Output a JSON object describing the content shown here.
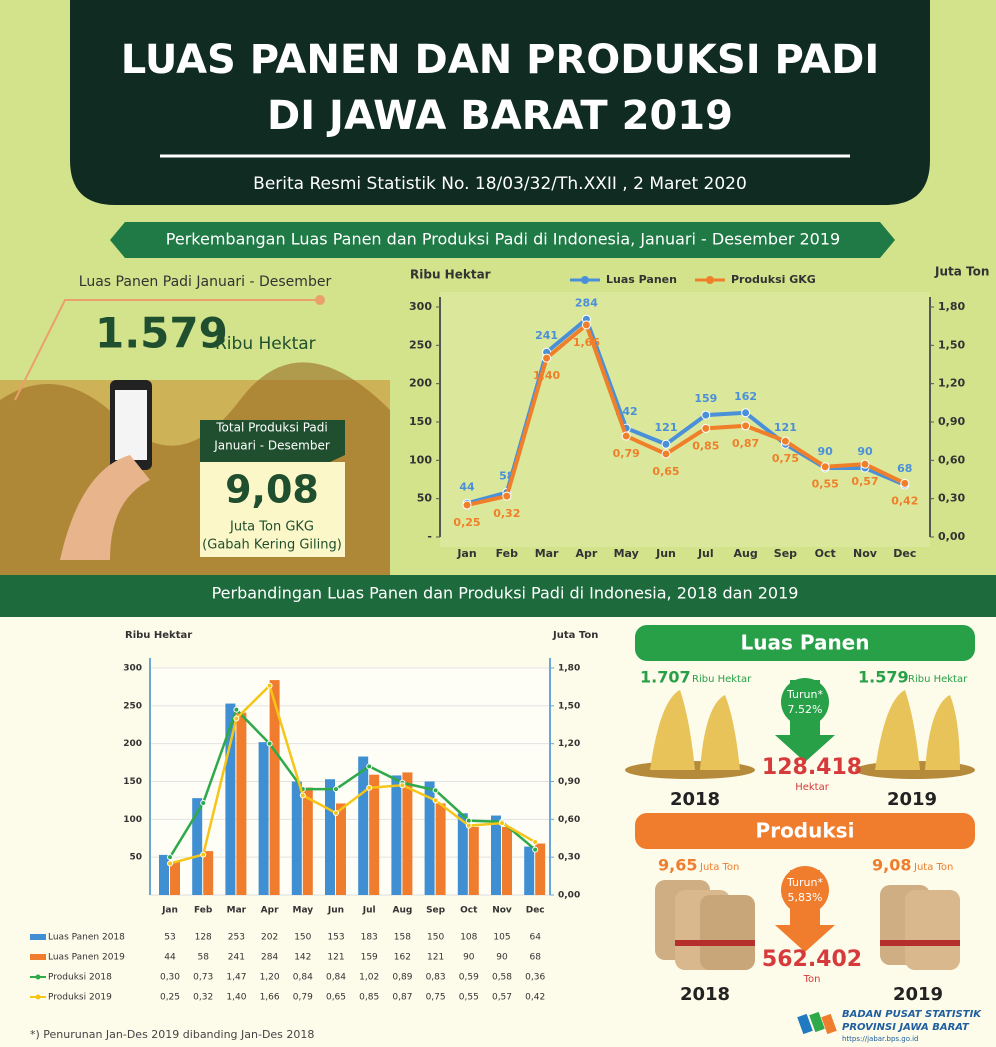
{
  "header": {
    "title_lines": [
      "LUAS PANEN DAN PRODUKSI PADI",
      "DI JAWA BARAT 2019"
    ],
    "subtitle": "Berita Resmi Statistik No.  18/03/32/Th.XXII , 2 Maret 2020"
  },
  "summary": {
    "area_label": "Luas Panen Padi Januari - Desember",
    "area_value": "1.579",
    "area_unit": "Ribu Hektar",
    "prod_label_lines": [
      "Total Produksi Padi",
      "Januari - Desember"
    ],
    "prod_value": "9,08",
    "prod_unit": "Juta Ton GKG",
    "prod_note": "(Gabah Kering Giling)"
  },
  "chart_data": [
    {
      "type": "line",
      "title": "Perkembangan Luas Panen dan Produksi Padi di Indonesia, Januari - Desember 2019",
      "y_label": "Ribu Hektar",
      "y2_label": "Juta Ton",
      "categories": [
        "Jan",
        "Feb",
        "Mar",
        "Apr",
        "May",
        "Jun",
        "Jul",
        "Aug",
        "Sep",
        "Oct",
        "Nov",
        "Dec"
      ],
      "ylim": [
        0,
        300
      ],
      "yticks": [
        {
          "value": 0,
          "label": "-"
        },
        50,
        100,
        150,
        200,
        250,
        300
      ],
      "y2lim": [
        0,
        1.8
      ],
      "y2ticks": [
        {
          "value": 0,
          "label": "0,00"
        },
        {
          "value": 0.3,
          "label": "0,30"
        },
        {
          "value": 0.6,
          "label": "0,60"
        },
        {
          "value": 0.9,
          "label": "0,90"
        },
        {
          "value": 1.2,
          "label": "1,20"
        },
        {
          "value": 1.5,
          "label": "1,50"
        },
        {
          "value": 1.8,
          "label": "1,80"
        }
      ],
      "grid": false,
      "series": [
        {
          "name": "Luas Panen",
          "color": "#4a90d9",
          "values": [
            44,
            58,
            241,
            284,
            142,
            121,
            159,
            162,
            121,
            90,
            90,
            68
          ]
        },
        {
          "name": "Produksi GKG",
          "color": "#f07f2a",
          "axis": "y2",
          "values": [
            0.25,
            0.32,
            1.4,
            1.66,
            0.79,
            0.65,
            0.85,
            0.87,
            0.75,
            0.55,
            0.57,
            0.42
          ],
          "value_labels": [
            "0,25",
            "0,32",
            "1,40",
            "1,66",
            "0,79",
            "0,65",
            "0,85",
            "0,87",
            "0,75",
            "0,55",
            "0,57",
            "0,42"
          ]
        }
      ]
    },
    {
      "type": "bar",
      "title": "Perbandingan Luas Panen dan Produksi Padi di Indonesia, 2018 dan 2019",
      "y_label": "Ribu Hektar",
      "y2_label": "Juta Ton",
      "categories": [
        "Jan",
        "Feb",
        "Mar",
        "Apr",
        "May",
        "Jun",
        "Jul",
        "Aug",
        "Sep",
        "Oct",
        "Nov",
        "Dec"
      ],
      "ylim": [
        0,
        300
      ],
      "yticks": [
        50,
        100,
        150,
        200,
        250,
        300
      ],
      "y2lim": [
        0,
        1.8
      ],
      "y2ticks": [
        {
          "value": 0,
          "label": "0,00"
        },
        {
          "value": 0.3,
          "label": "0,30"
        },
        {
          "value": 0.6,
          "label": "0,60"
        },
        {
          "value": 0.9,
          "label": "0,90"
        },
        {
          "value": 1.2,
          "label": "1,20"
        },
        {
          "value": 1.5,
          "label": "1,50"
        },
        {
          "value": 1.8,
          "label": "1,80"
        }
      ],
      "grid": true,
      "series": [
        {
          "name": "Luas Panen 2018",
          "color": "#3f8fd2",
          "values": [
            53,
            128,
            253,
            202,
            150,
            153,
            183,
            158,
            150,
            108,
            105,
            64
          ]
        },
        {
          "name": "Luas Panen 2019",
          "color": "#ef7d2d",
          "values": [
            44,
            58,
            241,
            284,
            142,
            121,
            159,
            162,
            121,
            90,
            90,
            68
          ]
        },
        {
          "name": "Produksi 2018",
          "color": "#2eaa4a",
          "type": "line",
          "axis": "y2",
          "values": [
            0.3,
            0.73,
            1.47,
            1.2,
            0.84,
            0.84,
            1.02,
            0.89,
            0.83,
            0.59,
            0.58,
            0.36
          ],
          "value_labels": [
            "0,30",
            "0,73",
            "1,47",
            "1,20",
            "0,84",
            "0,84",
            "1,02",
            "0,89",
            "0,83",
            "0,59",
            "0,58",
            "0,36"
          ]
        },
        {
          "name": "Produksi 2019",
          "color": "#f5c518",
          "type": "line",
          "axis": "y2",
          "values": [
            0.25,
            0.32,
            1.4,
            1.66,
            0.79,
            0.65,
            0.85,
            0.87,
            0.75,
            0.55,
            0.57,
            0.42
          ],
          "value_labels": [
            "0,25",
            "0,32",
            "1,40",
            "1,66",
            "0,79",
            "0,65",
            "0,85",
            "0,87",
            "0,75",
            "0,55",
            "0,57",
            "0,42"
          ]
        }
      ]
    }
  ],
  "comparison": {
    "area": {
      "title": "Luas Panen",
      "value_2018": "1.707",
      "unit_2018": "Ribu Hektar",
      "value_2019": "1.579",
      "unit_2019": "Ribu Hektar",
      "change_label": "Turun*",
      "change_pct": "7.52%",
      "diff": "128.418",
      "diff_unit": "Hektar",
      "year_2018": "2018",
      "year_2019": "2019"
    },
    "prod": {
      "title": "Produksi",
      "value_2018": "9,65",
      "unit_2018": "Juta Ton",
      "value_2019": "9,08",
      "unit_2019": "Juta Ton",
      "change_label": "Turun*",
      "change_pct": "5,83%",
      "diff": "562.402",
      "diff_unit": "Ton",
      "year_2018": "2018",
      "year_2019": "2019"
    }
  },
  "footer": {
    "note": "*) Penurunan Jan-Des 2019 dibanding Jan-Des 2018",
    "org_lines": [
      "BADAN PUSAT STATISTIK",
      "PROVINSI JAWA BARAT"
    ],
    "url": "https://jabar.bps.go.id"
  }
}
